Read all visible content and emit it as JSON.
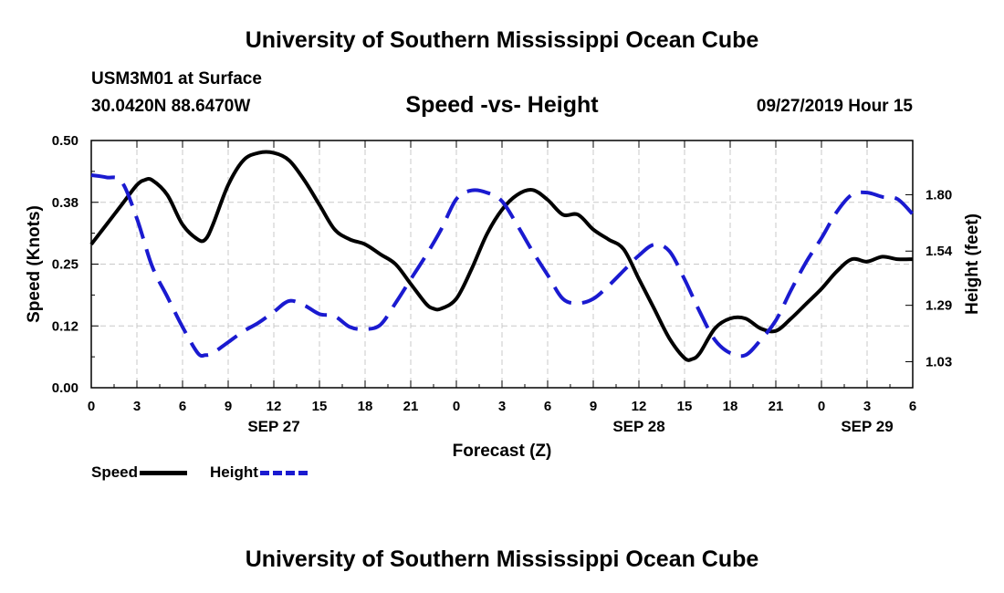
{
  "header": {
    "title": "University of Southern Mississippi Ocean Cube",
    "station": "USM3M01 at Surface",
    "coordinates": "30.0420N 88.6470W",
    "datetime": "09/27/2019 Hour 15"
  },
  "footer": {
    "title": "University of Southern Mississippi Ocean Cube"
  },
  "legend": {
    "speed_label": "Speed",
    "height_label": "Height"
  },
  "colors": {
    "speed": "#000000",
    "height": "#1a1ad0",
    "grid": "#c8c8c8"
  },
  "chart_data": {
    "type": "line",
    "title": "Speed -vs- Height",
    "xlabel": "Forecast (Z)",
    "ylabel": "Speed (Knots)",
    "y2label": "Height (feet)",
    "x_range_hours": [
      0,
      54
    ],
    "x_ticks": [
      {
        "h": 0,
        "label": "0"
      },
      {
        "h": 3,
        "label": "3"
      },
      {
        "h": 6,
        "label": "6"
      },
      {
        "h": 9,
        "label": "9"
      },
      {
        "h": 12,
        "label": "12"
      },
      {
        "h": 15,
        "label": "15"
      },
      {
        "h": 18,
        "label": "18"
      },
      {
        "h": 21,
        "label": "21"
      },
      {
        "h": 24,
        "label": "0"
      },
      {
        "h": 27,
        "label": "3"
      },
      {
        "h": 30,
        "label": "6"
      },
      {
        "h": 33,
        "label": "9"
      },
      {
        "h": 36,
        "label": "12"
      },
      {
        "h": 39,
        "label": "15"
      },
      {
        "h": 42,
        "label": "18"
      },
      {
        "h": 45,
        "label": "21"
      },
      {
        "h": 48,
        "label": "0"
      },
      {
        "h": 51,
        "label": "3"
      },
      {
        "h": 54,
        "label": "6"
      }
    ],
    "date_labels": [
      {
        "h": 12,
        "label": "SEP 27"
      },
      {
        "h": 36,
        "label": "SEP 28"
      },
      {
        "h": 51,
        "label": "SEP 29"
      }
    ],
    "ylim": [
      0,
      0.5
    ],
    "y_ticks": [
      {
        "v": 0.0,
        "label": "0.00"
      },
      {
        "v": 0.125,
        "label": "0.12"
      },
      {
        "v": 0.25,
        "label": "0.25"
      },
      {
        "v": 0.375,
        "label": "0.38"
      },
      {
        "v": 0.5,
        "label": "0.50"
      }
    ],
    "y2lim": [
      0.91,
      2.05
    ],
    "y2_ticks": [
      {
        "v": 1.03,
        "label": "1.03"
      },
      {
        "v": 1.29,
        "label": "1.29"
      },
      {
        "v": 1.54,
        "label": "1.54"
      },
      {
        "v": 1.8,
        "label": "1.80"
      }
    ],
    "series": [
      {
        "name": "Speed",
        "axis": "left",
        "style": "solid",
        "x": [
          0,
          1,
          2,
          3,
          3.5,
          4,
          5,
          6,
          7,
          7.5,
          8,
          9,
          10,
          11,
          12,
          13,
          14,
          15,
          16,
          17,
          18,
          19,
          20,
          21,
          22,
          22.5,
          23,
          24,
          25,
          26,
          27,
          28,
          29,
          30,
          31,
          32,
          33,
          34,
          35,
          36,
          37,
          38,
          39,
          39.5,
          40,
          41,
          42,
          43,
          44,
          45,
          46,
          47,
          48,
          49,
          50,
          51,
          52,
          53,
          54
        ],
        "values": [
          0.29,
          0.33,
          0.37,
          0.41,
          0.42,
          0.42,
          0.39,
          0.33,
          0.3,
          0.3,
          0.33,
          0.41,
          0.46,
          0.475,
          0.475,
          0.46,
          0.42,
          0.37,
          0.32,
          0.3,
          0.29,
          0.27,
          0.25,
          0.21,
          0.17,
          0.16,
          0.16,
          0.18,
          0.24,
          0.31,
          0.36,
          0.39,
          0.4,
          0.38,
          0.35,
          0.35,
          0.32,
          0.3,
          0.28,
          0.22,
          0.16,
          0.1,
          0.06,
          0.058,
          0.07,
          0.12,
          0.14,
          0.14,
          0.12,
          0.115,
          0.14,
          0.17,
          0.2,
          0.235,
          0.26,
          0.255,
          0.265,
          0.26,
          0.26
        ]
      },
      {
        "name": "Height",
        "axis": "right",
        "style": "dashed",
        "x": [
          0,
          1,
          2,
          3,
          4,
          5,
          6,
          7,
          7.5,
          8,
          9,
          10,
          11,
          12,
          13,
          14,
          15,
          16,
          17,
          18,
          19,
          20,
          21,
          22,
          23,
          24,
          25,
          26,
          27,
          28,
          29,
          30,
          31,
          32,
          33,
          34,
          35,
          36,
          37,
          38,
          39,
          40,
          41,
          42,
          43,
          44,
          45,
          46,
          47,
          48,
          49,
          50,
          51,
          52,
          53,
          54
        ],
        "values": [
          1.89,
          1.88,
          1.86,
          1.69,
          1.47,
          1.33,
          1.19,
          1.07,
          1.06,
          1.07,
          1.12,
          1.17,
          1.21,
          1.26,
          1.31,
          1.29,
          1.25,
          1.24,
          1.19,
          1.18,
          1.2,
          1.3,
          1.41,
          1.52,
          1.64,
          1.78,
          1.82,
          1.81,
          1.77,
          1.66,
          1.54,
          1.43,
          1.32,
          1.3,
          1.32,
          1.38,
          1.45,
          1.52,
          1.57,
          1.54,
          1.41,
          1.26,
          1.13,
          1.07,
          1.06,
          1.13,
          1.22,
          1.36,
          1.49,
          1.6,
          1.72,
          1.8,
          1.81,
          1.79,
          1.78,
          1.71
        ]
      }
    ]
  }
}
